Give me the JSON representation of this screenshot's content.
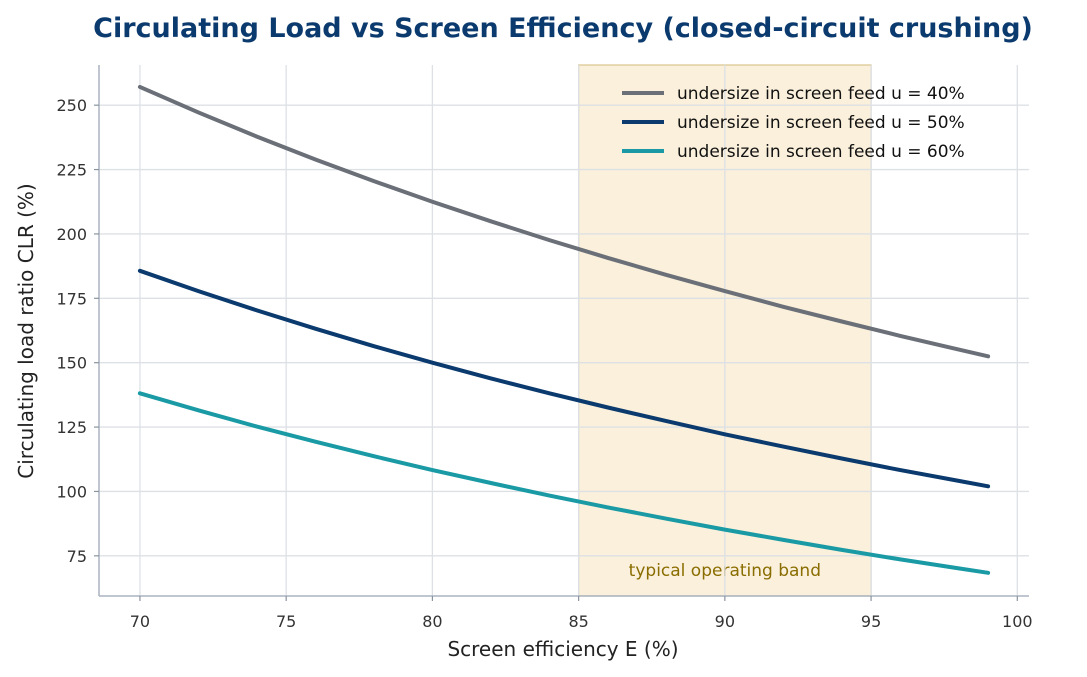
{
  "chart_data": {
    "type": "line",
    "title": "Circulating Load vs Screen Efficiency (closed-circuit crushing)",
    "xlabel": "Screen efficiency  E (%)",
    "ylabel": "Circulating load ratio  CLR (%)",
    "xlim": [
      68.6,
      100.4
    ],
    "ylim": [
      59.4,
      265.6
    ],
    "x_ticks": [
      70,
      75,
      80,
      85,
      90,
      95,
      100
    ],
    "y_ticks": [
      75,
      100,
      125,
      150,
      175,
      200,
      225,
      250
    ],
    "grid": true,
    "legend_position": "top-right",
    "x": [
      70,
      72,
      74,
      76,
      78,
      80,
      82,
      84,
      86,
      88,
      90,
      92,
      94,
      96,
      98,
      99
    ],
    "series": [
      {
        "name": "undersize in screen feed u = 40%",
        "color": "#6b7078",
        "values": [
          257.1,
          247.2,
          237.8,
          228.9,
          220.5,
          212.5,
          204.9,
          197.6,
          190.7,
          184.1,
          177.8,
          171.7,
          166.0,
          160.4,
          155.1,
          152.5
        ]
      },
      {
        "name": "undersize in screen feed u = 50%",
        "color": "#0b3a6e",
        "values": [
          185.7,
          177.8,
          170.3,
          163.2,
          156.4,
          150.0,
          143.9,
          138.1,
          132.6,
          127.3,
          122.2,
          117.4,
          112.8,
          108.3,
          104.1,
          102.0
        ]
      },
      {
        "name": "undersize in screen feed u = 60%",
        "color": "#1a9aa4",
        "values": [
          138.1,
          131.5,
          125.2,
          119.3,
          113.7,
          108.3,
          103.3,
          98.4,
          93.8,
          89.4,
          85.2,
          81.2,
          77.3,
          73.6,
          70.1,
          68.4
        ]
      }
    ],
    "bands": [
      {
        "x_range": [
          85,
          95
        ],
        "label": "typical operating band",
        "color": "#f3deb0"
      }
    ]
  }
}
